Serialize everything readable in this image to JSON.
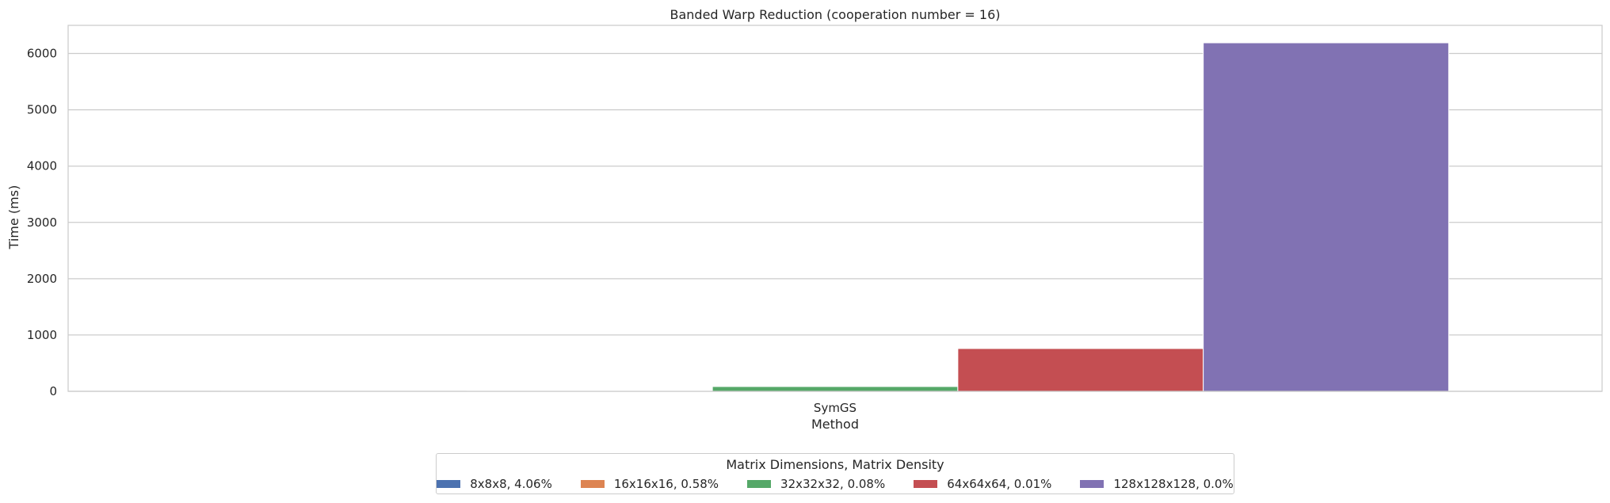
{
  "chart_data": {
    "type": "bar",
    "title": "Banded Warp Reduction (cooperation number = 16)",
    "xlabel": "Method",
    "ylabel": "Time (ms)",
    "categories": [
      "SymGS"
    ],
    "ylim": [
      0,
      6500
    ],
    "yticks": [
      0,
      1000,
      2000,
      3000,
      4000,
      5000,
      6000
    ],
    "grid": true,
    "legend_placement": "bottom-center",
    "legend_title": "Matrix Dimensions, Matrix Density",
    "series": [
      {
        "name": "8x8x8, 4.06%",
        "values": [
          2
        ],
        "color": "#4c72b0"
      },
      {
        "name": "16x16x16, 0.58%",
        "values": [
          8
        ],
        "color": "#dd8452"
      },
      {
        "name": "32x32x32, 0.08%",
        "values": [
          85
        ],
        "color": "#55a868"
      },
      {
        "name": "64x64x64, 0.01%",
        "values": [
          760
        ],
        "color": "#c44e52"
      },
      {
        "name": "128x128x128, 0.0%",
        "values": [
          6190
        ],
        "color": "#8172b3"
      }
    ]
  }
}
